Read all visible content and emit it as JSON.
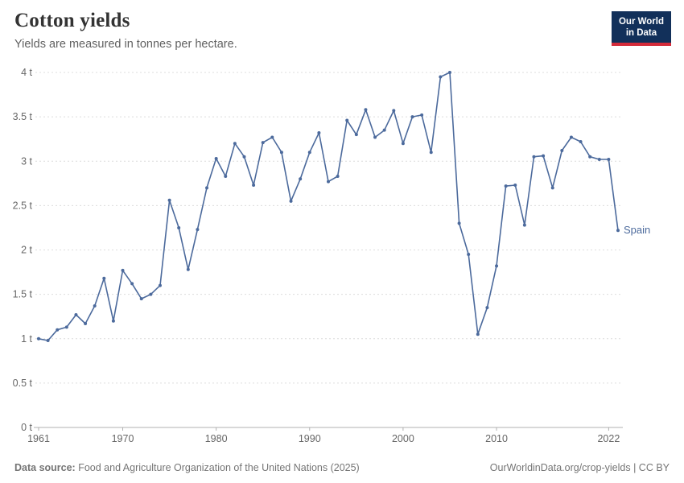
{
  "header": {
    "title": "Cotton yields",
    "subtitle": "Yields are measured in tonnes per hectare.",
    "logo": {
      "line1": "Our World",
      "line2": "in Data"
    }
  },
  "chart_data": {
    "type": "line",
    "title": "Cotton yields",
    "ylabel": "tonnes per hectare",
    "xlabel": "",
    "grid": "horizontal-dashed",
    "legend_position": "end-of-line-label",
    "xlim": [
      1961,
      2023
    ],
    "ylim": [
      0,
      4
    ],
    "x_ticks": [
      1961,
      1970,
      1980,
      1990,
      2000,
      2010,
      2022
    ],
    "y_ticks": [
      0,
      0.5,
      1,
      1.5,
      2,
      2.5,
      3,
      3.5,
      4
    ],
    "y_tick_labels": [
      "0 t",
      "0.5 t",
      "1 t",
      "1.5 t",
      "2 t",
      "2.5 t",
      "3 t",
      "3.5 t",
      "4 t"
    ],
    "series": [
      {
        "name": "Spain",
        "color": "#4C6A9C",
        "x": [
          1961,
          1962,
          1963,
          1964,
          1965,
          1966,
          1967,
          1968,
          1969,
          1970,
          1971,
          1972,
          1973,
          1974,
          1975,
          1976,
          1977,
          1978,
          1979,
          1980,
          1981,
          1982,
          1983,
          1984,
          1985,
          1986,
          1987,
          1988,
          1989,
          1990,
          1991,
          1992,
          1993,
          1994,
          1995,
          1996,
          1997,
          1998,
          1999,
          2000,
          2001,
          2002,
          2003,
          2004,
          2005,
          2006,
          2007,
          2008,
          2009,
          2010,
          2011,
          2012,
          2013,
          2014,
          2015,
          2016,
          2017,
          2018,
          2019,
          2020,
          2021,
          2022,
          2023
        ],
        "values": [
          1.0,
          0.98,
          1.1,
          1.13,
          1.27,
          1.17,
          1.37,
          1.68,
          1.2,
          1.77,
          1.62,
          1.45,
          1.5,
          1.6,
          2.56,
          2.25,
          1.78,
          2.23,
          2.7,
          3.03,
          2.83,
          3.2,
          3.05,
          2.73,
          3.21,
          3.27,
          3.1,
          2.55,
          2.8,
          3.1,
          3.32,
          2.77,
          2.83,
          3.46,
          3.3,
          3.58,
          3.27,
          3.35,
          3.57,
          3.2,
          3.5,
          3.52,
          3.1,
          3.95,
          4.0,
          2.3,
          1.95,
          1.05,
          1.35,
          1.82,
          2.72,
          2.73,
          2.28,
          3.05,
          3.06,
          2.7,
          3.12,
          3.27,
          3.22,
          3.05,
          3.02,
          3.02,
          2.22
        ]
      }
    ]
  },
  "footer": {
    "source_label": "Data source:",
    "source_text": " Food and Agriculture Organization of the United Nations (2025)",
    "credit": "OurWorldinData.org/crop-yields | CC BY"
  },
  "colors": {
    "line": "#4C6A9C",
    "grid": "#dcdcdc",
    "axis": "#b0b0b0",
    "tick_text": "#666666",
    "logo_bg": "#12305a",
    "logo_red": "#d42b3a"
  }
}
